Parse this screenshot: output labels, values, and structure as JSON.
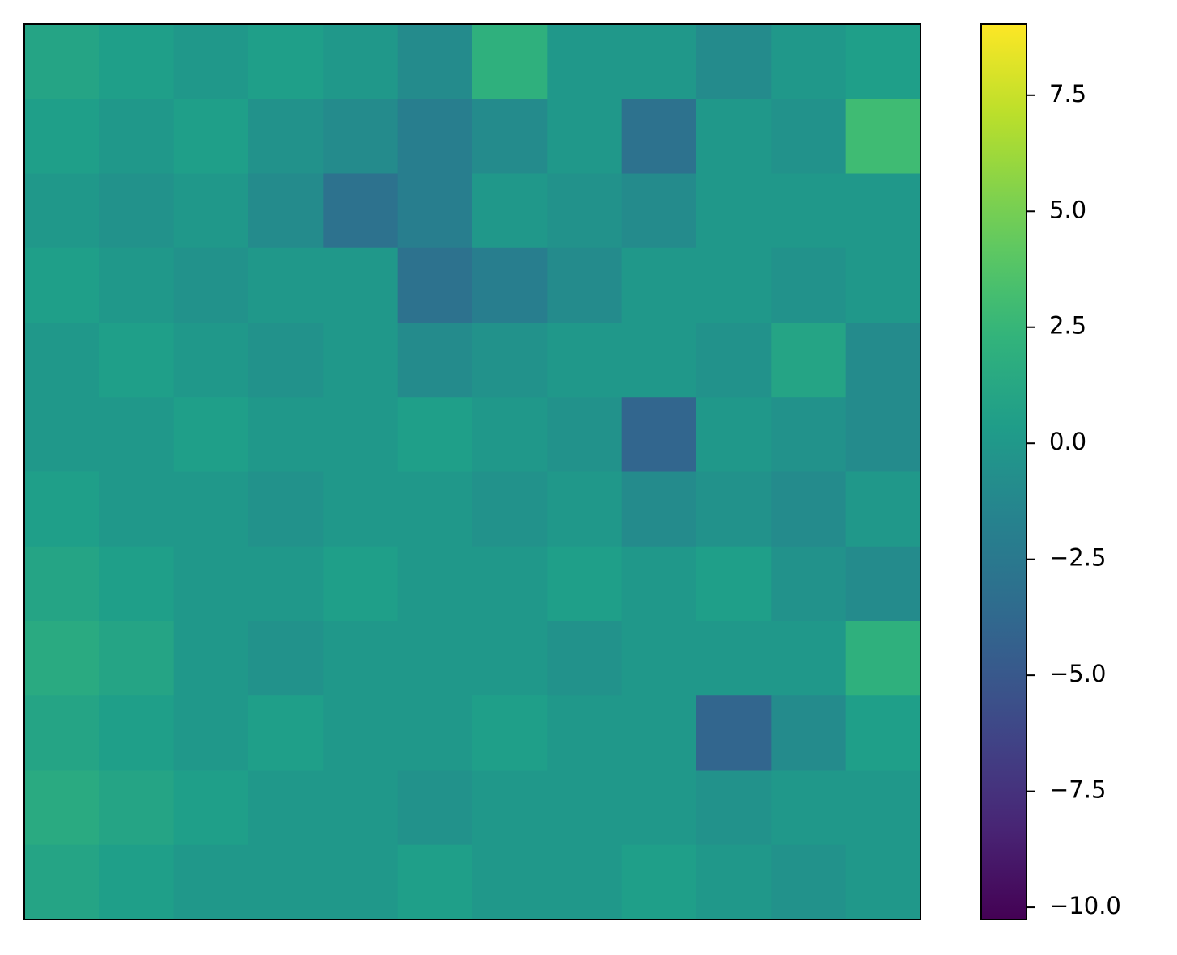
{
  "chart_data": {
    "type": "heatmap",
    "colormap": "viridis",
    "values": [
      [
        1,
        0.5,
        0,
        0.5,
        0,
        -1,
        2,
        0,
        0,
        -1,
        0,
        0.5
      ],
      [
        0.5,
        0,
        0.5,
        -0.5,
        -1,
        -2,
        -1,
        0,
        -3,
        0,
        -0.5,
        3
      ],
      [
        0,
        -0.5,
        0,
        -1,
        -3,
        -2,
        0,
        -0.5,
        -1,
        0,
        0,
        0
      ],
      [
        0.5,
        0,
        -0.5,
        0,
        0,
        -3,
        -2,
        -1,
        0,
        0,
        -0.5,
        0
      ],
      [
        0,
        0.5,
        0,
        -0.5,
        0,
        -1,
        -0.5,
        0,
        0,
        -0.5,
        1,
        -1
      ],
      [
        0,
        0,
        0.5,
        0,
        0,
        0.5,
        0,
        -0.5,
        -4,
        0,
        -0.5,
        -1
      ],
      [
        0.5,
        0,
        0,
        -0.5,
        0,
        0,
        -0.5,
        0,
        -1,
        -0.5,
        -1,
        0
      ],
      [
        1,
        0.5,
        0,
        0,
        0.5,
        0,
        0,
        0.5,
        0,
        0.5,
        -0.5,
        -1
      ],
      [
        1.5,
        1,
        0,
        -0.5,
        0,
        0,
        0,
        -0.5,
        0,
        0,
        0,
        2
      ],
      [
        1,
        0.5,
        0,
        0.5,
        0,
        0,
        0.5,
        0,
        0,
        -4,
        -1,
        0.5
      ],
      [
        1.5,
        1,
        0.5,
        0,
        0,
        -0.5,
        0,
        0,
        0,
        -0.5,
        0,
        0
      ],
      [
        1,
        0.5,
        0,
        0,
        0,
        0.5,
        0,
        0,
        0.5,
        0,
        -0.5,
        0
      ]
    ],
    "clim": [
      -10.26,
      9.03
    ],
    "cticks": [
      {
        "value": -10,
        "label": "−10.0"
      },
      {
        "value": -7.5,
        "label": "−7.5"
      },
      {
        "value": -5,
        "label": "−5.0"
      },
      {
        "value": -2.5,
        "label": "−2.5"
      },
      {
        "value": 0,
        "label": "0.0"
      },
      2.5,
      {
        "value": 5,
        "label": "5.0"
      },
      7.5
    ]
  }
}
